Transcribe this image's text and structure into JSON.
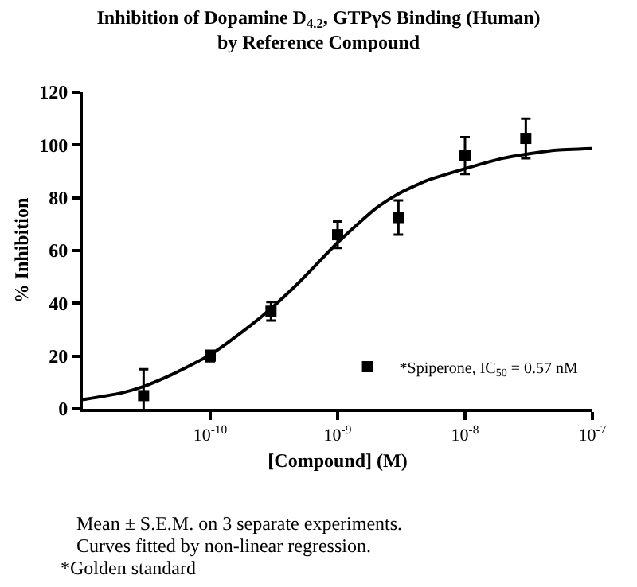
{
  "chart_data": {
    "type": "scatter",
    "title": "Inhibition of Dopamine D$_{4.2}$, GTPγS Binding (Human)\nby Reference Compound",
    "xlabel": "[Compound] (M)",
    "ylabel": "% Inhibition",
    "log": "x",
    "xlim": [
      1e-11,
      1e-07
    ],
    "xticks": [
      {
        "value": 1e-10,
        "label": "10$^{-10}$"
      },
      {
        "value": 1e-09,
        "label": "10$^{-9}$"
      },
      {
        "value": 1e-08,
        "label": "10$^{-8}$"
      },
      {
        "value": 1e-07,
        "label": "10$^{-7}$"
      }
    ],
    "ylim": [
      0,
      120
    ],
    "yticks": [
      0,
      20,
      40,
      60,
      80,
      100,
      120
    ],
    "legend": "bottom right",
    "marker": "square",
    "series": [
      {
        "name": "*Spiperone, IC$_{50}$ = 0.57 nM",
        "color": "#000000",
        "x": [
          3e-11,
          1e-10,
          3e-10,
          1e-09,
          3e-09,
          1e-08,
          3e-08
        ],
        "values": [
          5,
          20,
          37,
          66,
          72.5,
          96,
          102.5
        ],
        "errors": [
          10,
          2,
          3.5,
          5,
          6.5,
          7,
          7.5
        ]
      },
      {
        "type": "line",
        "marker": "none",
        "color": "#000000",
        "x": [
          1e-11,
          2e-11,
          3e-11,
          5e-11,
          1e-10,
          2e-10,
          3e-10,
          5e-10,
          1e-09,
          2e-09,
          3e-09,
          5e-09,
          1e-08,
          2e-08,
          3e-08,
          5e-08,
          1e-07
        ],
        "values": [
          3.5,
          6,
          8.5,
          13,
          20.5,
          31,
          38,
          48,
          63,
          76,
          81.5,
          86.5,
          91,
          95,
          96.5,
          98,
          98.7
        ]
      }
    ],
    "annotations": [
      "Mean ± S.E.M. on 3 separate experiments.",
      "Curves fitted by non-linear regression.",
      "*Golden standard"
    ]
  }
}
